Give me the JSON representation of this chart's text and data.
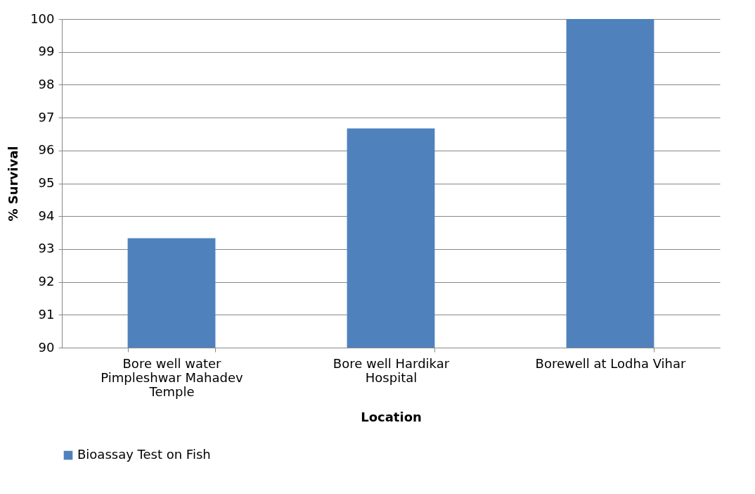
{
  "chart_data": {
    "type": "bar",
    "xlabel": "Location",
    "ylabel": "% Survival",
    "categories": [
      "Bore well water Pimpleshwar Mahadev Temple",
      "Bore well Hardikar Hospital",
      "Borewell at Lodha Vihar"
    ],
    "series": [
      {
        "name": "Bioassay Test on Fish",
        "color": "#4f81bd",
        "values": [
          93.33,
          96.67,
          100
        ]
      }
    ],
    "ylim": [
      90,
      100
    ],
    "yticks": [
      90,
      91,
      92,
      93,
      94,
      95,
      96,
      97,
      98,
      99,
      100
    ],
    "grid": "y",
    "legend": "bottom"
  }
}
